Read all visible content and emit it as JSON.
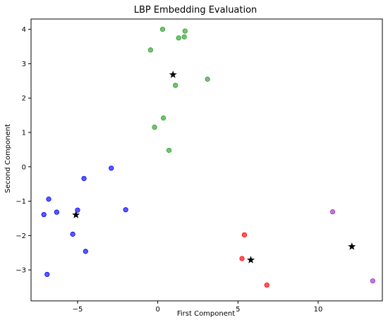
{
  "chart_data": {
    "type": "scatter",
    "title": "LBP  Embedding  Evaluation",
    "xlabel": "First Component",
    "ylabel": "Second Component",
    "xlim": [
      -7.9,
      14.0
    ],
    "ylim": [
      -3.9,
      4.3
    ],
    "xticks": [
      -5,
      0,
      5,
      10
    ],
    "yticks": [
      -3,
      -2,
      -1,
      0,
      1,
      2,
      3,
      4
    ],
    "xtick_labels": [
      "−5",
      "0",
      "5",
      "10"
    ],
    "ytick_labels": [
      "−3",
      "−2",
      "−1",
      "0",
      "1",
      "2",
      "3",
      "4"
    ],
    "grid": false,
    "series": [
      {
        "color": "#2ca02c",
        "points": [
          [
            0.3,
            4.0
          ],
          [
            1.7,
            3.95
          ],
          [
            1.3,
            3.75
          ],
          [
            1.65,
            3.78
          ],
          [
            -0.45,
            3.4
          ],
          [
            3.1,
            2.55
          ],
          [
            1.1,
            2.37
          ],
          [
            0.35,
            1.42
          ],
          [
            -0.2,
            1.15
          ],
          [
            0.7,
            0.48
          ]
        ]
      },
      {
        "color": "#0000ff",
        "points": [
          [
            -2.9,
            -0.04
          ],
          [
            -4.6,
            -0.34
          ],
          [
            -6.8,
            -0.94
          ],
          [
            -6.3,
            -1.32
          ],
          [
            -7.1,
            -1.39
          ],
          [
            -5.0,
            -1.26
          ],
          [
            -2.0,
            -1.25
          ],
          [
            -5.3,
            -1.96
          ],
          [
            -4.5,
            -2.46
          ],
          [
            -6.9,
            -3.13
          ]
        ]
      },
      {
        "color": "#ff0000",
        "points": [
          [
            5.4,
            -1.98
          ],
          [
            5.25,
            -2.67
          ],
          [
            6.8,
            -3.44
          ]
        ]
      },
      {
        "color": "#9932cc",
        "points": [
          [
            10.9,
            -1.31
          ],
          [
            13.4,
            -3.32
          ]
        ]
      }
    ],
    "centroids": {
      "color": "#000000",
      "marker": "star",
      "points": [
        [
          0.95,
          2.68
        ],
        [
          -5.1,
          -1.4
        ],
        [
          5.8,
          -2.71
        ],
        [
          12.1,
          -2.32
        ]
      ]
    }
  }
}
